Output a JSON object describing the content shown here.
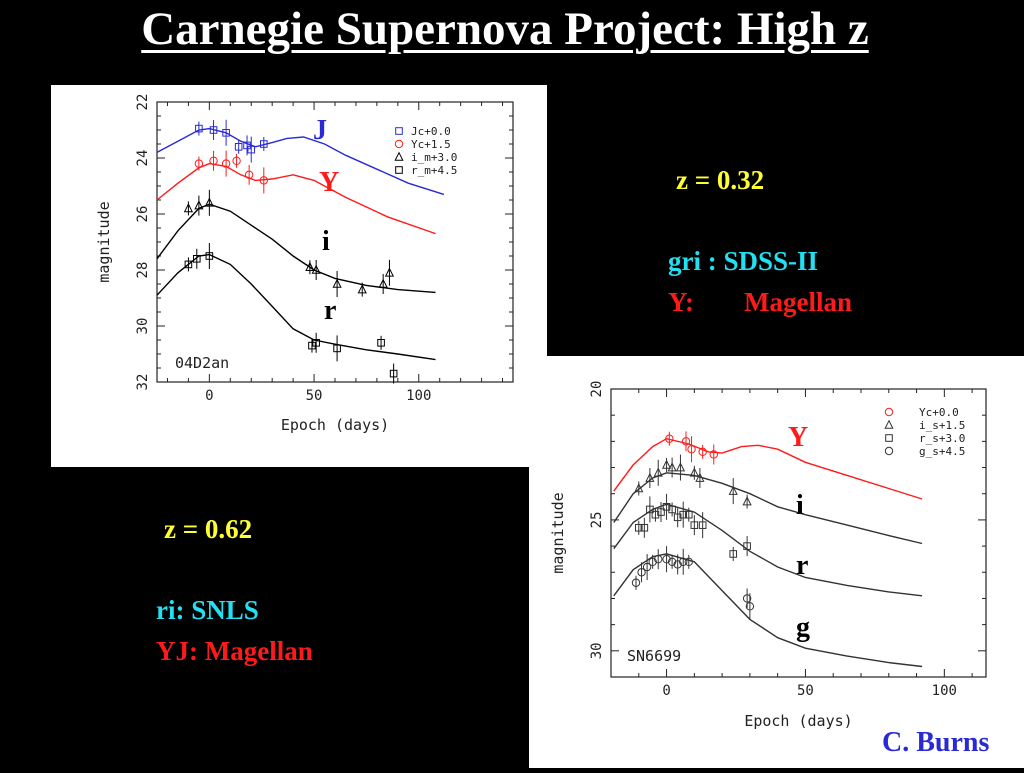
{
  "title": "Carnegie Supernova Project: High z",
  "left_info": {
    "z": "z = 0.62",
    "surveys": "ri: SNLS",
    "nir": "YJ: Magellan"
  },
  "right_info": {
    "z": "z = 0.32",
    "surveys": "gri : SDSS-II",
    "nir_band": "Y:",
    "nir_telescope": "Magellan"
  },
  "credit": "C. Burns",
  "colors": {
    "yellow": "#ffff33",
    "cyan": "#22e0f2",
    "red": "#ff1a1a",
    "blue": "#2a2ad4",
    "black": "#000000"
  },
  "chart_data": [
    {
      "type": "line",
      "name_label": "04D2an",
      "xlabel": "Epoch (days)",
      "ylabel": "magnitude",
      "xlim": [
        -25,
        145
      ],
      "ylim": [
        32,
        22
      ],
      "xticks": [
        0,
        50,
        100
      ],
      "yticks": [
        22,
        24,
        26,
        28,
        30,
        32
      ],
      "legend": [
        "Jc+0.0",
        "Yc+1.5",
        "i_m+3.0",
        "r_m+4.5"
      ],
      "legend_position": "top-right",
      "band_labels": [
        "J",
        "Y",
        "i",
        "r"
      ],
      "series": [
        {
          "name": "Jc+0.0",
          "color": "#2a2ad4",
          "marker": "square",
          "curve": [
            [
              -25,
              23.8
            ],
            [
              -15,
              23.4
            ],
            [
              -5,
              23.0
            ],
            [
              0,
              22.95
            ],
            [
              8,
              23.1
            ],
            [
              15,
              23.4
            ],
            [
              22,
              23.6
            ],
            [
              30,
              23.45
            ],
            [
              37,
              23.3
            ],
            [
              45,
              23.25
            ],
            [
              55,
              23.5
            ],
            [
              65,
              23.9
            ],
            [
              80,
              24.4
            ],
            [
              95,
              24.9
            ],
            [
              112,
              25.3
            ]
          ],
          "points": [
            [
              -5,
              22.95
            ],
            [
              2,
              23.0
            ],
            [
              8,
              23.1
            ],
            [
              14,
              23.6
            ],
            [
              18,
              23.55
            ],
            [
              20,
              23.7
            ],
            [
              26,
              23.5
            ]
          ]
        },
        {
          "name": "Yc+1.5",
          "color": "#ff1a1a",
          "marker": "circle",
          "curve": [
            [
              -25,
              25.5
            ],
            [
              -15,
              24.9
            ],
            [
              -5,
              24.35
            ],
            [
              0,
              24.2
            ],
            [
              8,
              24.3
            ],
            [
              15,
              24.6
            ],
            [
              22,
              24.8
            ],
            [
              30,
              24.75
            ],
            [
              40,
              24.6
            ],
            [
              50,
              24.8
            ],
            [
              65,
              25.4
            ],
            [
              85,
              26.1
            ],
            [
              108,
              26.7
            ]
          ],
          "points": [
            [
              -5,
              24.2
            ],
            [
              2,
              24.1
            ],
            [
              8,
              24.2
            ],
            [
              13,
              24.1
            ],
            [
              19,
              24.6
            ],
            [
              26,
              24.8
            ]
          ]
        },
        {
          "name": "i_m+3.0",
          "color": "#000000",
          "marker": "triangle",
          "curve": [
            [
              -25,
              27.6
            ],
            [
              -15,
              26.6
            ],
            [
              -5,
              25.8
            ],
            [
              0,
              25.65
            ],
            [
              10,
              25.9
            ],
            [
              20,
              26.4
            ],
            [
              30,
              26.9
            ],
            [
              40,
              27.5
            ],
            [
              50,
              28.0
            ],
            [
              60,
              28.3
            ],
            [
              75,
              28.55
            ],
            [
              90,
              28.7
            ],
            [
              108,
              28.8
            ]
          ],
          "points": [
            [
              -10,
              25.8
            ],
            [
              -5,
              25.7
            ],
            [
              0,
              25.6
            ],
            [
              48,
              27.9
            ],
            [
              51,
              28.0
            ],
            [
              61,
              28.5
            ],
            [
              73,
              28.7
            ],
            [
              83,
              28.5
            ],
            [
              86,
              28.1
            ]
          ]
        },
        {
          "name": "r_m+4.5",
          "color": "#000000",
          "marker": "square",
          "curve": [
            [
              -25,
              28.9
            ],
            [
              -15,
              28.1
            ],
            [
              -5,
              27.5
            ],
            [
              0,
              27.45
            ],
            [
              10,
              27.8
            ],
            [
              20,
              28.5
            ],
            [
              30,
              29.3
            ],
            [
              40,
              30.1
            ],
            [
              50,
              30.5
            ],
            [
              60,
              30.65
            ],
            [
              75,
              30.85
            ],
            [
              90,
              31.0
            ],
            [
              108,
              31.2
            ]
          ],
          "points": [
            [
              -10,
              27.8
            ],
            [
              -6,
              27.6
            ],
            [
              0,
              27.5
            ],
            [
              49,
              30.7
            ],
            [
              51,
              30.6
            ],
            [
              61,
              30.8
            ],
            [
              82,
              30.6
            ],
            [
              88,
              31.7
            ]
          ]
        }
      ]
    },
    {
      "type": "line",
      "name_label": "SN6699",
      "xlabel": "Epoch (days)",
      "ylabel": "magnitude",
      "xlim": [
        -20,
        115
      ],
      "ylim": [
        31,
        20
      ],
      "xticks": [
        0,
        50,
        100
      ],
      "yticks": [
        20,
        25,
        30
      ],
      "legend": [
        "Yc+0.0",
        "i_s+1.5",
        "r_s+3.0",
        "g_s+4.5"
      ],
      "legend_position": "top-right",
      "band_labels": [
        "Y",
        "i",
        "r",
        "g"
      ],
      "series": [
        {
          "name": "Yc+0.0",
          "color": "#ff1a1a",
          "marker": "circle",
          "curve": [
            [
              -19,
              23.9
            ],
            [
              -12,
              22.9
            ],
            [
              -5,
              22.2
            ],
            [
              0,
              21.9
            ],
            [
              8,
              22.1
            ],
            [
              15,
              22.4
            ],
            [
              20,
              22.45
            ],
            [
              27,
              22.2
            ],
            [
              33,
              22.15
            ],
            [
              40,
              22.3
            ],
            [
              50,
              22.8
            ],
            [
              65,
              23.3
            ],
            [
              80,
              23.8
            ],
            [
              92,
              24.2
            ]
          ],
          "points": [
            [
              1,
              21.9
            ],
            [
              7,
              22.0
            ],
            [
              9,
              22.3
            ],
            [
              13,
              22.4
            ],
            [
              17,
              22.5
            ]
          ]
        },
        {
          "name": "i_s+1.5",
          "color": "#333333",
          "marker": "triangle",
          "curve": [
            [
              -19,
              25.1
            ],
            [
              -12,
              24.0
            ],
            [
              -5,
              23.4
            ],
            [
              0,
              23.2
            ],
            [
              10,
              23.3
            ],
            [
              20,
              23.6
            ],
            [
              30,
              24.0
            ],
            [
              40,
              24.5
            ],
            [
              50,
              24.8
            ],
            [
              65,
              25.2
            ],
            [
              80,
              25.6
            ],
            [
              92,
              25.9
            ]
          ],
          "points": [
            [
              -10,
              23.8
            ],
            [
              -6,
              23.4
            ],
            [
              -3,
              23.2
            ],
            [
              0,
              22.9
            ],
            [
              2,
              23.0
            ],
            [
              5,
              23.0
            ],
            [
              10,
              23.2
            ],
            [
              12,
              23.4
            ],
            [
              24,
              23.9
            ],
            [
              29,
              24.3
            ]
          ]
        },
        {
          "name": "r_s+3.0",
          "color": "#333333",
          "marker": "square",
          "curve": [
            [
              -19,
              26.1
            ],
            [
              -12,
              25.1
            ],
            [
              -5,
              24.6
            ],
            [
              0,
              24.4
            ],
            [
              10,
              24.7
            ],
            [
              20,
              25.4
            ],
            [
              30,
              26.2
            ],
            [
              40,
              26.8
            ],
            [
              50,
              27.2
            ],
            [
              65,
              27.5
            ],
            [
              80,
              27.75
            ],
            [
              92,
              27.9
            ]
          ],
          "points": [
            [
              -10,
              25.3
            ],
            [
              -8,
              25.3
            ],
            [
              -6,
              24.6
            ],
            [
              -4,
              24.8
            ],
            [
              -2,
              24.7
            ],
            [
              0,
              24.5
            ],
            [
              2,
              24.6
            ],
            [
              4,
              24.9
            ],
            [
              6,
              24.8
            ],
            [
              8,
              24.8
            ],
            [
              10,
              25.2
            ],
            [
              13,
              25.2
            ],
            [
              24,
              26.3
            ],
            [
              29,
              26.0
            ]
          ]
        },
        {
          "name": "g_s+4.5",
          "color": "#333333",
          "marker": "circle",
          "curve": [
            [
              -19,
              27.9
            ],
            [
              -12,
              26.9
            ],
            [
              -5,
              26.4
            ],
            [
              0,
              26.3
            ],
            [
              10,
              26.6
            ],
            [
              20,
              27.7
            ],
            [
              30,
              28.8
            ],
            [
              40,
              29.5
            ],
            [
              50,
              29.9
            ],
            [
              65,
              30.2
            ],
            [
              80,
              30.45
            ],
            [
              92,
              30.6
            ]
          ],
          "points": [
            [
              -11,
              27.4
            ],
            [
              -9,
              27.0
            ],
            [
              -7,
              26.8
            ],
            [
              -5,
              26.6
            ],
            [
              -3,
              26.5
            ],
            [
              0,
              26.5
            ],
            [
              2,
              26.6
            ],
            [
              4,
              26.7
            ],
            [
              6,
              26.6
            ],
            [
              8,
              26.6
            ],
            [
              29,
              28.0
            ],
            [
              30,
              28.3
            ]
          ]
        }
      ]
    }
  ]
}
